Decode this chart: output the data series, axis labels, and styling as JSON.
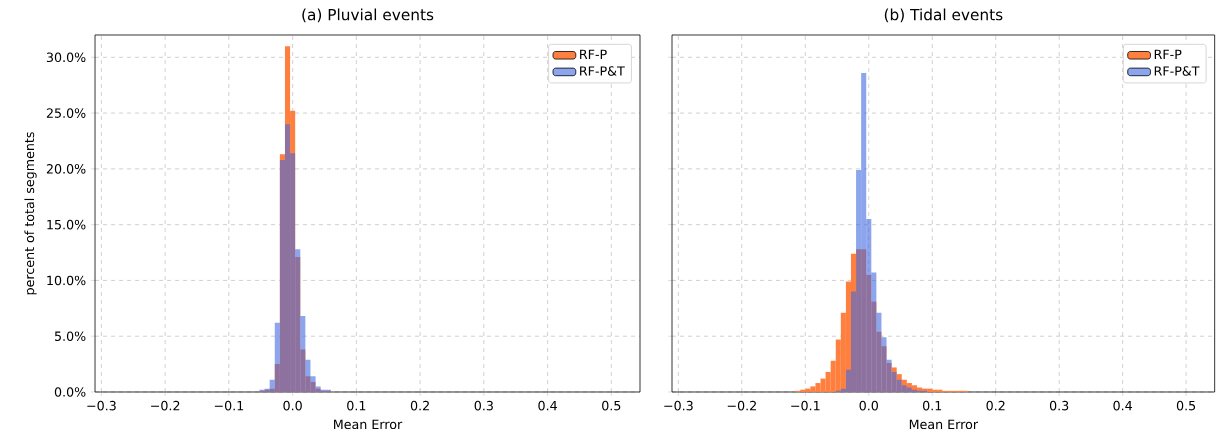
{
  "chart_data": [
    {
      "type": "histogram",
      "title": "(a) Pluvial events",
      "xlabel": "Mean Error",
      "ylabel": "percent of total segments",
      "bins": [
        -0.052,
        -0.044,
        -0.036,
        -0.028,
        -0.02,
        -0.012,
        -0.004,
        0.004,
        0.012,
        0.02,
        0.028,
        0.036,
        0.044,
        0.052,
        0.06
      ],
      "series": [
        {
          "name": "RF-P",
          "color": "#ff7f3f",
          "values": [
            0.1,
            0.2,
            0.3,
            2.5,
            21.3,
            31.0,
            25.2,
            12.1,
            3.8,
            1.4,
            0.9,
            0.3,
            0.1,
            0.1
          ]
        },
        {
          "name": "RF-P&T",
          "color": "#4169e1",
          "values": [
            0.2,
            0.3,
            1.1,
            6.2,
            20.8,
            24.0,
            21.4,
            12.8,
            6.8,
            2.9,
            1.4,
            0.5,
            0.2,
            0.2
          ]
        }
      ],
      "xlim": [
        -0.31,
        0.545
      ],
      "ylim": [
        0,
        32
      ],
      "xticks": [
        {
          "value": -0.3,
          "label": "−0.3"
        },
        {
          "value": -0.2,
          "label": "−0.2"
        },
        {
          "value": -0.1,
          "label": "−0.1"
        },
        {
          "value": 0,
          "label": "0.0"
        },
        {
          "value": 0.1,
          "label": "0.1"
        },
        {
          "value": 0.2,
          "label": "0.2"
        },
        {
          "value": 0.3,
          "label": "0.3"
        },
        {
          "value": 0.4,
          "label": "0.4"
        },
        {
          "value": 0.5,
          "label": "0.5"
        }
      ],
      "yticks": [
        {
          "value": 0,
          "label": "0.0%"
        },
        {
          "value": 5,
          "label": "5.0%"
        },
        {
          "value": 10,
          "label": "10.0%"
        },
        {
          "value": 15,
          "label": "15.0%"
        },
        {
          "value": 20,
          "label": "20.0%"
        },
        {
          "value": 25,
          "label": "25.0%"
        },
        {
          "value": 30,
          "label": "30.0%"
        }
      ],
      "grid": true,
      "legend": "top right"
    },
    {
      "type": "histogram",
      "title": "(b) Tidal events",
      "xlabel": "Mean Error",
      "bins": [
        -0.116,
        -0.108,
        -0.1,
        -0.092,
        -0.084,
        -0.076,
        -0.068,
        -0.06,
        -0.052,
        -0.044,
        -0.036,
        -0.028,
        -0.02,
        -0.012,
        -0.004,
        0.004,
        0.012,
        0.02,
        0.028,
        0.036,
        0.044,
        0.052,
        0.06,
        0.068,
        0.076,
        0.084,
        0.092,
        0.1,
        0.108,
        0.116,
        0.124,
        0.132,
        0.14,
        0.148,
        0.156
      ],
      "series": [
        {
          "name": "RF-P",
          "color": "#ff7f3f",
          "values": [
            0.1,
            0.2,
            0.3,
            0.5,
            0.8,
            1.2,
            1.8,
            2.8,
            4.7,
            7.1,
            9.9,
            12.4,
            12.8,
            12.8,
            10.5,
            8.1,
            5.4,
            4.1,
            2.6,
            2.2,
            1.6,
            1.1,
            0.8,
            0.6,
            0.4,
            0.3,
            0.3,
            0.2,
            0.2,
            0.1,
            0.1,
            0.1,
            0.1,
            0.1
          ]
        },
        {
          "name": "RF-P&T",
          "color": "#4169e1",
          "values": [
            0,
            0,
            0,
            0,
            0,
            0,
            0,
            0,
            0.1,
            0.3,
            2.0,
            9.0,
            19.9,
            28.6,
            15.5,
            10.7,
            7.1,
            4.9,
            2.9,
            1.8,
            1.1,
            0.6,
            0.4,
            0.2,
            0.1,
            0.1,
            0,
            0,
            0,
            0,
            0,
            0,
            0,
            0
          ]
        }
      ],
      "xlim": [
        -0.31,
        0.545
      ],
      "ylim": [
        0,
        32
      ],
      "xticks": [
        {
          "value": -0.3,
          "label": "−0.3"
        },
        {
          "value": -0.2,
          "label": "−0.2"
        },
        {
          "value": -0.1,
          "label": "−0.1"
        },
        {
          "value": 0,
          "label": "0.0"
        },
        {
          "value": 0.1,
          "label": "0.1"
        },
        {
          "value": 0.2,
          "label": "0.2"
        },
        {
          "value": 0.3,
          "label": "0.3"
        },
        {
          "value": 0.4,
          "label": "0.4"
        },
        {
          "value": 0.5,
          "label": "0.5"
        }
      ],
      "yticks": [
        {
          "value": 0,
          "label": null
        },
        {
          "value": 5,
          "label": null
        },
        {
          "value": 10,
          "label": null
        },
        {
          "value": 15,
          "label": null
        },
        {
          "value": 20,
          "label": null
        },
        {
          "value": 25,
          "label": null
        },
        {
          "value": 30,
          "label": null
        }
      ],
      "grid": true,
      "legend": "top right",
      "tick_labels": "x"
    }
  ]
}
